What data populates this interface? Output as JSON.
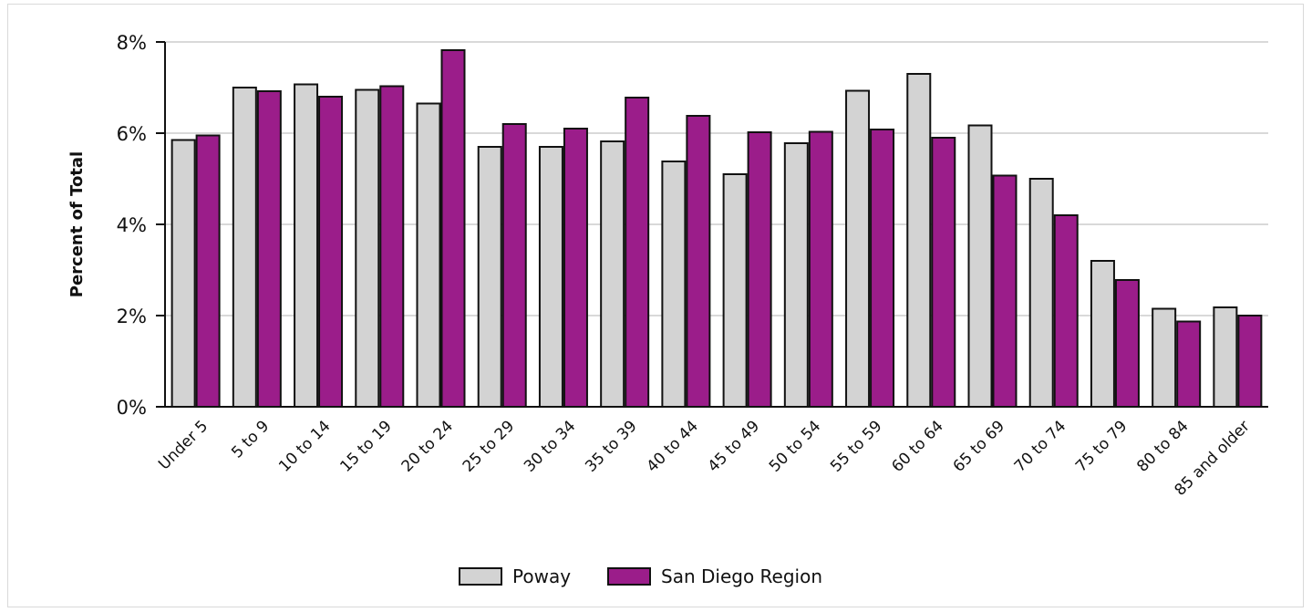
{
  "chart_data": {
    "type": "bar",
    "title": "",
    "xlabel": "",
    "ylabel": "Percent of Total",
    "ylim": [
      0,
      8
    ],
    "yticks": [
      {
        "value": 0,
        "label": "0%"
      },
      {
        "value": 2,
        "label": "2%"
      },
      {
        "value": 4,
        "label": "4%"
      },
      {
        "value": 6,
        "label": "6%"
      },
      {
        "value": 8,
        "label": "8%"
      }
    ],
    "grid": true,
    "legend_position": "bottom-center",
    "categories": [
      "Under 5",
      "5 to 9",
      "10 to 14",
      "15 to 19",
      "20 to 24",
      "25 to 29",
      "30 to 34",
      "35 to 39",
      "40 to 44",
      "45 to 49",
      "50 to 54",
      "55 to 59",
      "60 to 64",
      "65 to 69",
      "70 to 74",
      "75 to 79",
      "80 to 84",
      "85 and older"
    ],
    "series": [
      {
        "name": "Poway",
        "color": "#d3d3d3",
        "values": [
          5.85,
          7.0,
          7.07,
          6.95,
          6.65,
          5.7,
          5.7,
          5.82,
          5.38,
          5.1,
          5.78,
          6.93,
          7.3,
          6.17,
          5.0,
          3.2,
          2.15,
          2.18
        ]
      },
      {
        "name": "San Diego Region",
        "color": "#9b1d8a",
        "values": [
          5.95,
          6.92,
          6.8,
          7.03,
          7.82,
          6.2,
          6.1,
          6.78,
          6.38,
          6.02,
          6.03,
          6.08,
          5.9,
          5.07,
          4.2,
          2.78,
          1.87,
          2.0
        ]
      }
    ]
  }
}
